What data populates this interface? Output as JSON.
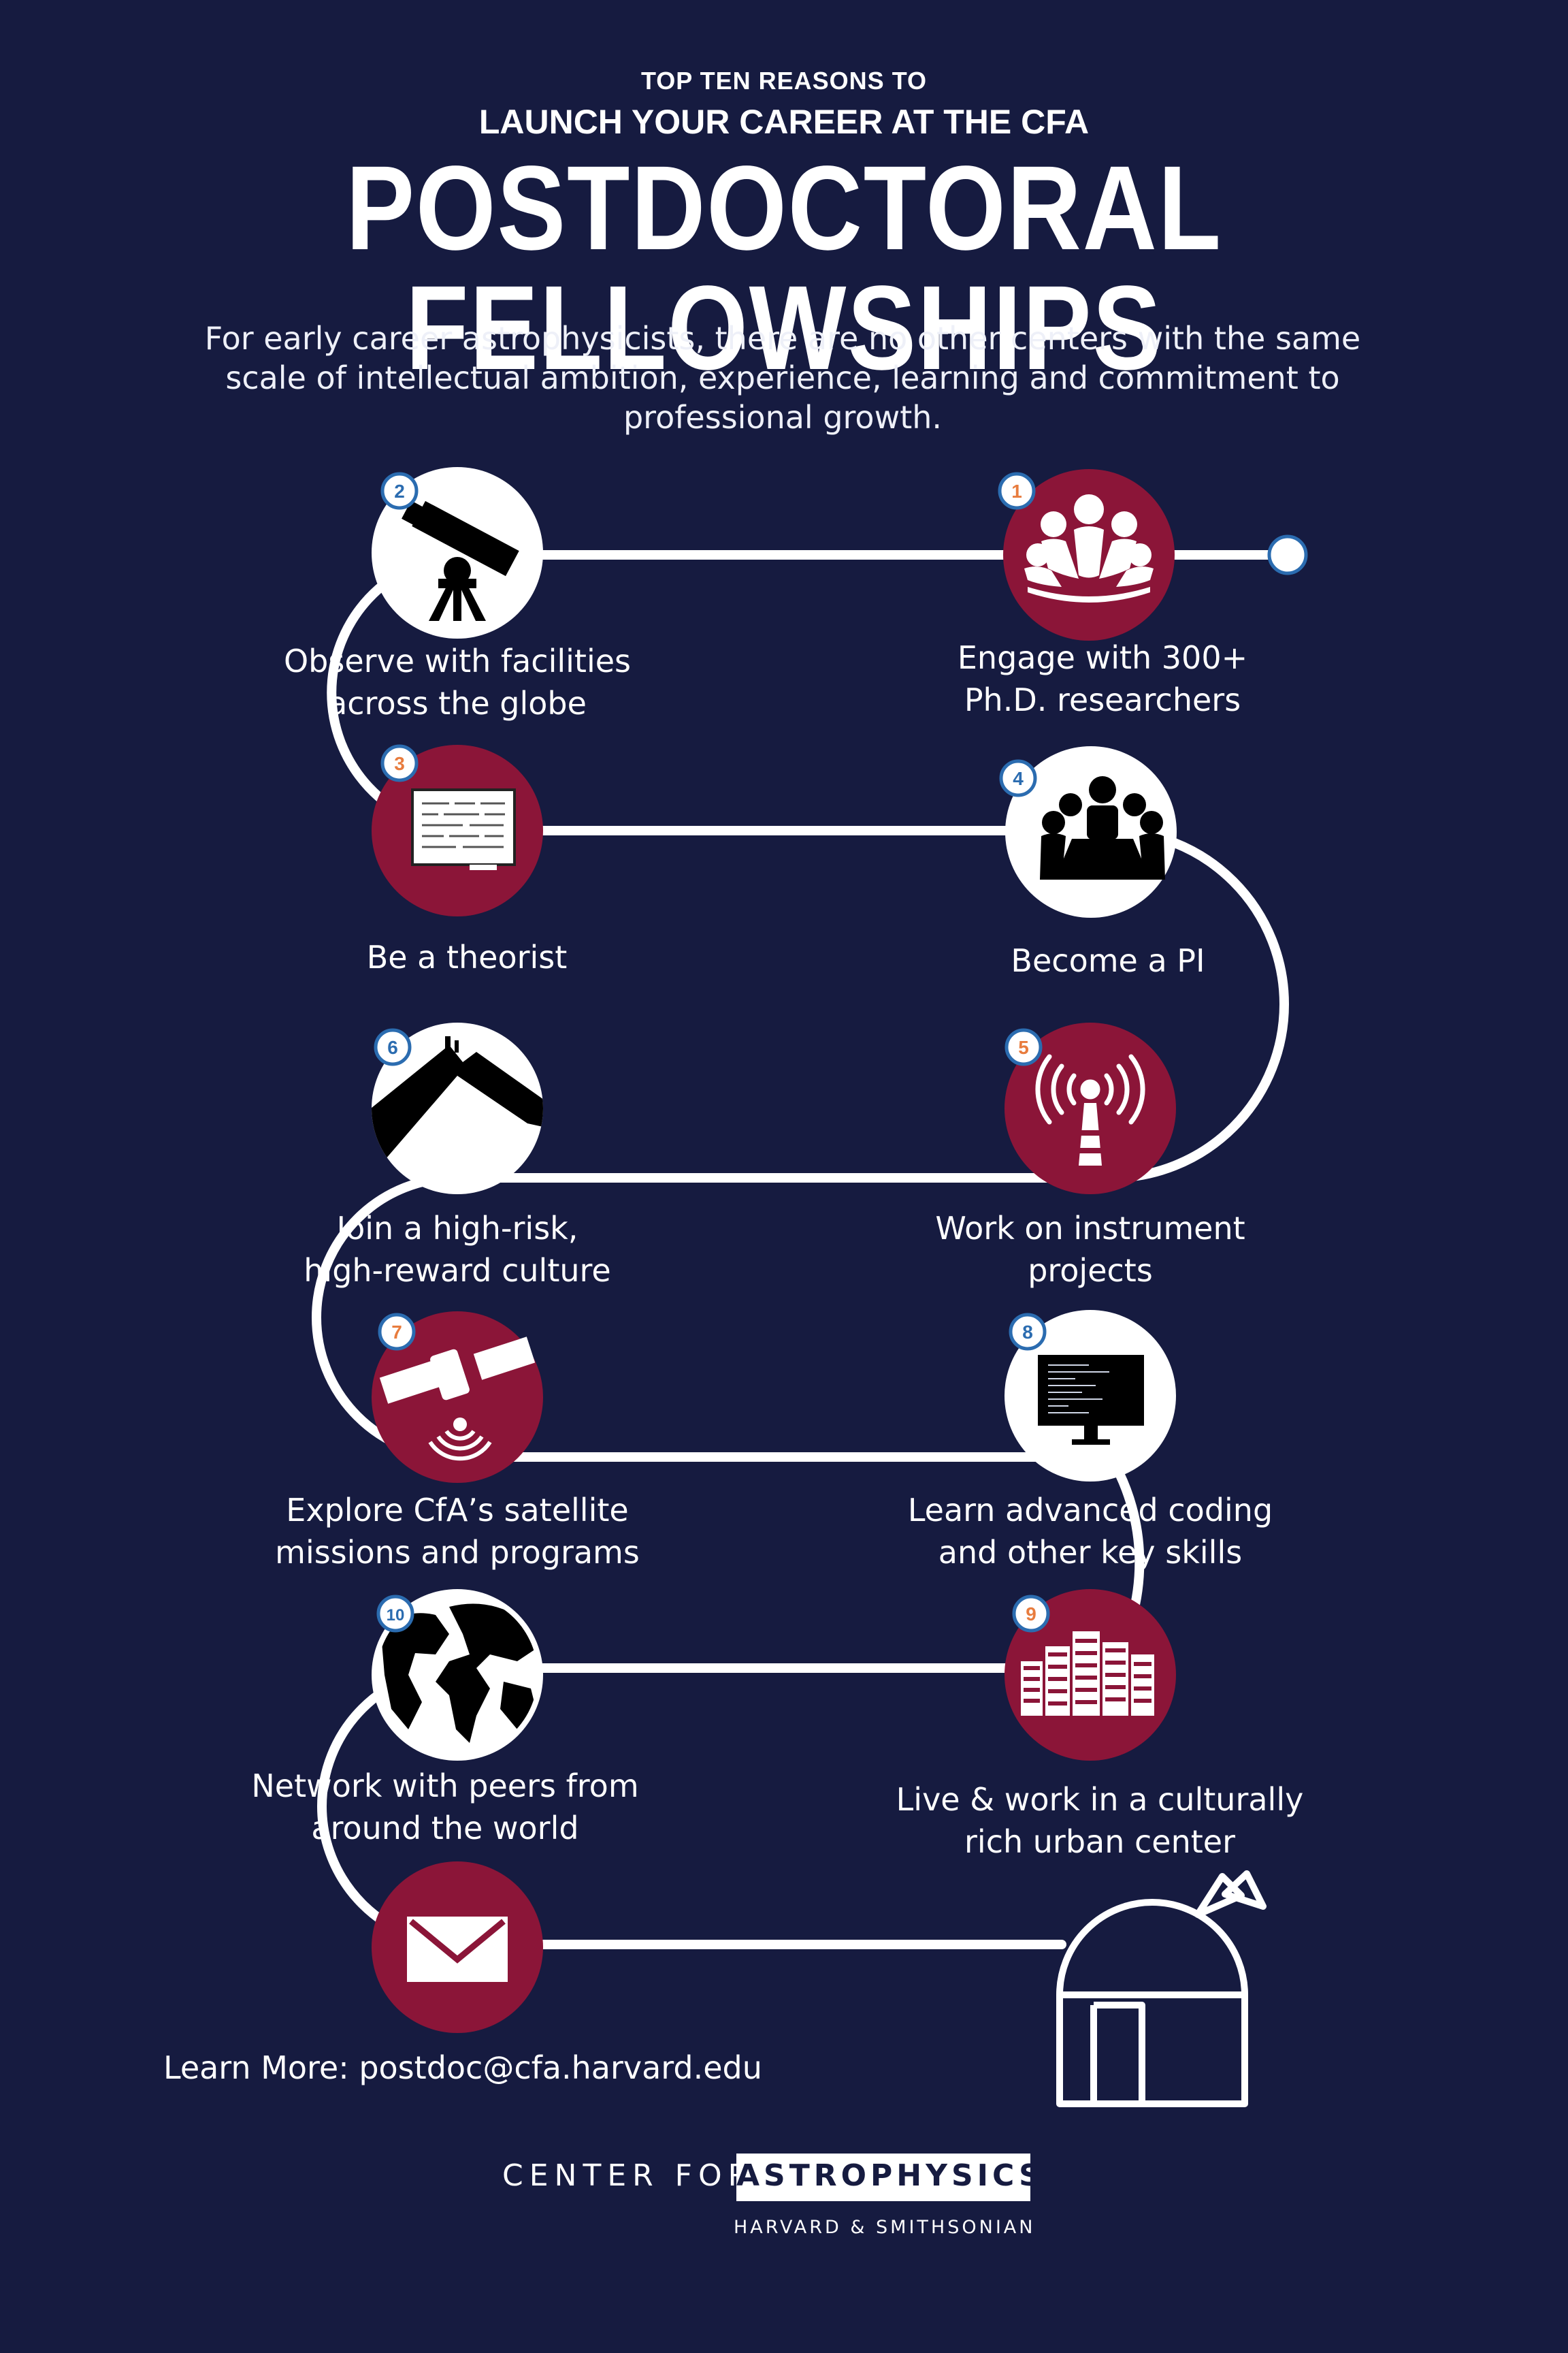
{
  "header": {
    "kicker": "TOP TEN REASONS TO",
    "subhead": "LAUNCH YOUR CAREER AT THE CFA",
    "title": "POSTDOCTORAL FELLOWSHIPS"
  },
  "intro": "For early career astrophysicists, there are no other centers with the same scale of intellectual ambition, experience, learning and commitment to professional growth.",
  "colors": {
    "background": "#161b40",
    "accent": "#8b1538",
    "path": "#ffffff",
    "number_blue": "#2b6cb0",
    "number_orange": "#e87c3e"
  },
  "reasons": [
    {
      "number": "1",
      "icon": "people-network-icon",
      "lines": [
        "Engage with 300+",
        "Ph.D. researchers"
      ]
    },
    {
      "number": "2",
      "icon": "telescope-icon",
      "lines": [
        "Observe with facilities",
        "across the globe"
      ]
    },
    {
      "number": "3",
      "icon": "chalkboard-icon",
      "lines": [
        "Be a theorist"
      ]
    },
    {
      "number": "4",
      "icon": "meeting-icon",
      "lines": [
        "Become a PI"
      ]
    },
    {
      "number": "5",
      "icon": "antenna-icon",
      "lines": [
        "Work on instrument",
        "projects"
      ]
    },
    {
      "number": "6",
      "icon": "mountain-icon",
      "lines": [
        "Join a high-risk,",
        "high-reward culture"
      ]
    },
    {
      "number": "7",
      "icon": "satellite-icon",
      "lines": [
        "Explore CfA’s satellite",
        "missions and programs"
      ]
    },
    {
      "number": "8",
      "icon": "computer-monitor-icon",
      "lines": [
        "Learn advanced coding",
        "and other key skills"
      ]
    },
    {
      "number": "9",
      "icon": "city-buildings-icon",
      "lines": [
        "Live & work in a culturally",
        "rich urban center"
      ]
    },
    {
      "number": "10",
      "icon": "globe-icon",
      "lines": [
        "Network with peers from",
        "around the world"
      ]
    }
  ],
  "contact": {
    "icon": "envelope-icon",
    "text": "Learn More: postdoc@cfa.harvard.edu"
  },
  "end_icon": "observatory-dome-icon",
  "logo": {
    "left_text": "CENTER FOR",
    "right_text": "ASTROPHYSICS",
    "subtext": "HARVARD & SMITHSONIAN"
  }
}
